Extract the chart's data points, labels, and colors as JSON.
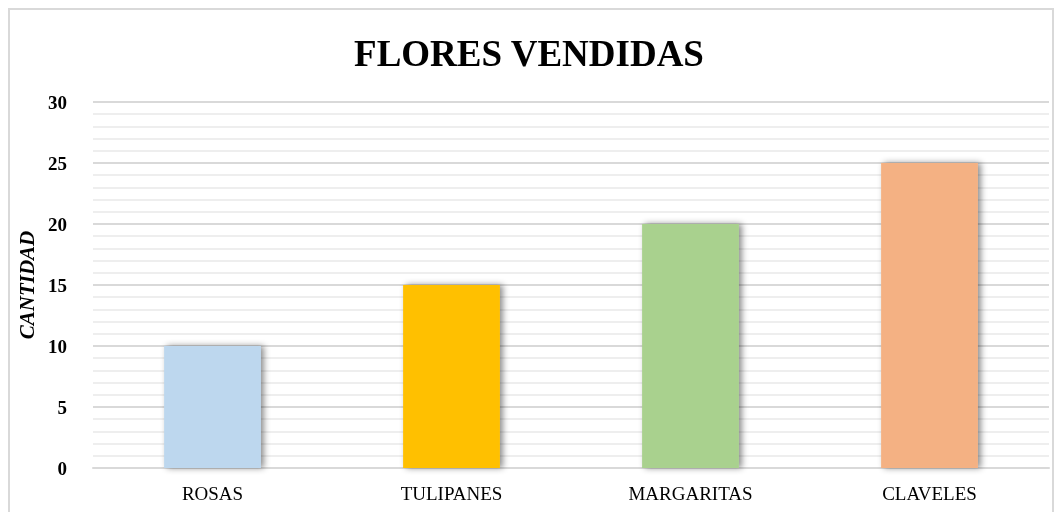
{
  "chart_data": {
    "type": "bar",
    "title": "FLORES VENDIDAS",
    "ylabel": "CANTIDAD",
    "categories": [
      "ROSAS",
      "TULIPANES",
      "MARGARITAS",
      "CLAVELES"
    ],
    "values": [
      10,
      15,
      20,
      25
    ],
    "colors": [
      "#bdd7ee",
      "#ffc000",
      "#a9d18e",
      "#f4b183"
    ],
    "ylim": [
      0,
      30
    ],
    "yticks": [
      0,
      5,
      10,
      15,
      20,
      25,
      30
    ],
    "grid": "y"
  }
}
